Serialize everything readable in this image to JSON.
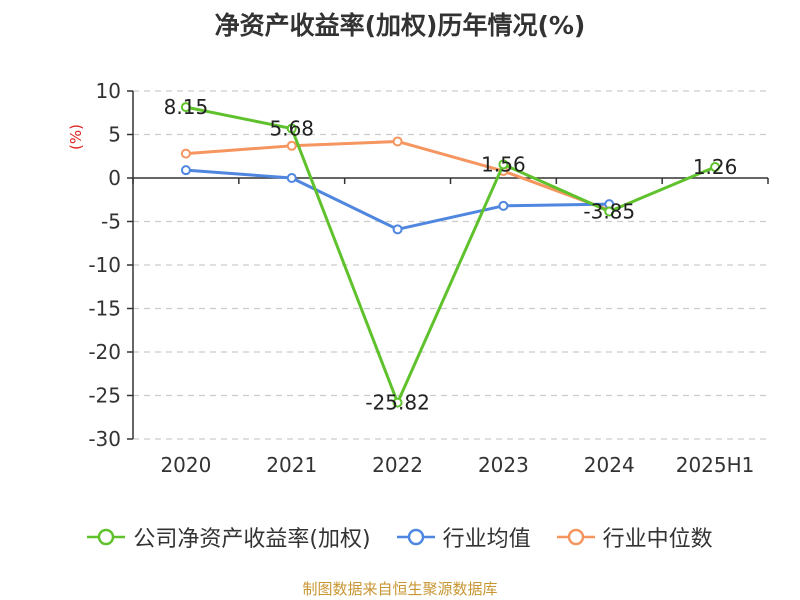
{
  "title": "净资产收益率(加权)历年情况(%)",
  "source": "制图数据来自恒生聚源数据库",
  "colors": {
    "company": "#5fc22c",
    "industry_avg": "#4f86df",
    "industry_median": "#f5955f",
    "axis": "#333333",
    "grid": "#cccccc",
    "y_unit": "#e02020",
    "source": "#c89632"
  },
  "chart_data": {
    "type": "line",
    "ylabel": "(%)",
    "xlabel": "",
    "ylim": [
      -30,
      10
    ],
    "y_ticks": [
      10,
      5,
      0,
      -5,
      -10,
      -15,
      -20,
      -25,
      -30
    ],
    "grid": "horizontal-dashed",
    "legend_position": "bottom",
    "categories": [
      "2020",
      "2021",
      "2022",
      "2023",
      "2024",
      "2025H1"
    ],
    "series": [
      {
        "name": "公司净资产收益率(加权)",
        "values": [
          8.15,
          5.68,
          -25.82,
          1.56,
          -3.85,
          1.26
        ],
        "labels": [
          "8.15",
          "5.68",
          "-25.82",
          "1.56",
          "-3.85",
          "1.26"
        ]
      },
      {
        "name": "行业均值",
        "values": [
          0.9,
          0.0,
          -5.9,
          -3.2,
          -3.0,
          null
        ]
      },
      {
        "name": "行业中位数",
        "values": [
          2.8,
          3.7,
          4.2,
          0.8,
          -3.7,
          null
        ]
      }
    ]
  }
}
